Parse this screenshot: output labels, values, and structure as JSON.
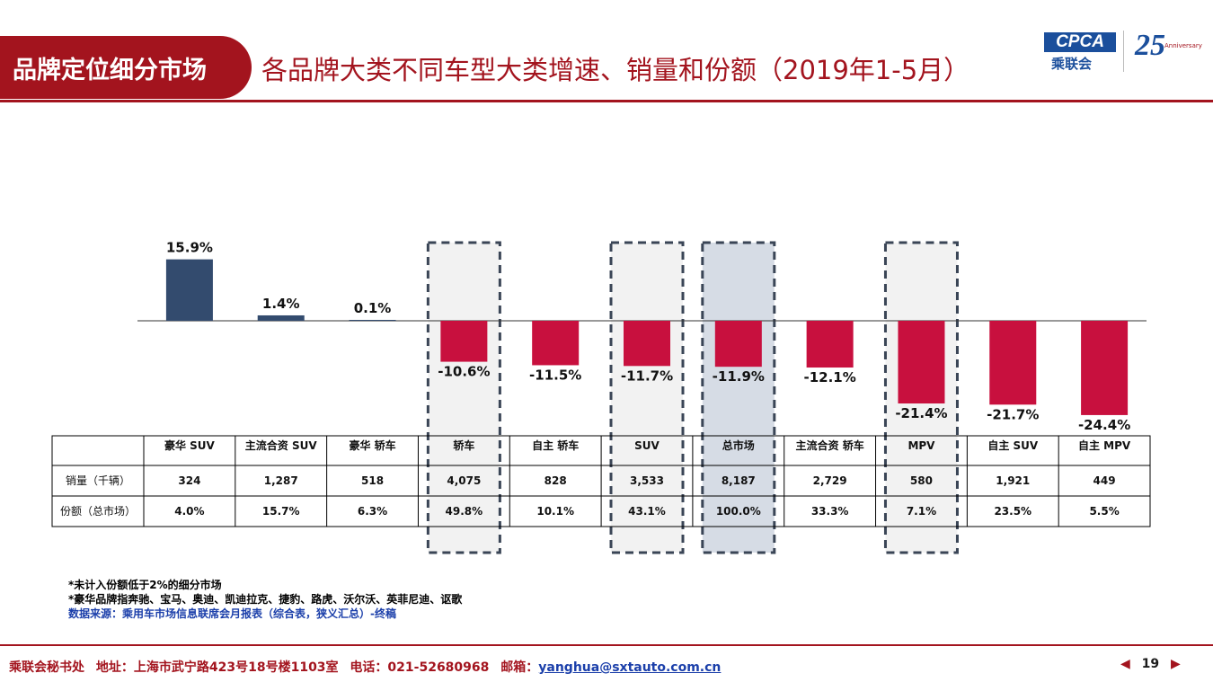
{
  "header": {
    "badge": "品牌定位细分市场",
    "title": "各品牌大类不同车型大类增速、销量和份额（2019年1-5月）"
  },
  "logos": {
    "cpca": "CPCA",
    "cpca_sub": "乘联会",
    "anniversary": "25",
    "anniversary_sub": "Anniversary"
  },
  "colors": {
    "positive": "#334b6e",
    "negative": "#c8103e",
    "highlight_box": "#f2f2f2",
    "highlight_total": "#d6dce5",
    "accent": "#a3141e"
  },
  "chart_data": {
    "type": "bar",
    "categories": [
      "豪华 SUV",
      "主流合资 SUV",
      "豪华 轿车",
      "轿车",
      "自主 轿车",
      "SUV",
      "总市场",
      "主流合资 轿车",
      "MPV",
      "自主 SUV",
      "自主 MPV"
    ],
    "values": [
      15.9,
      1.4,
      0.1,
      -10.6,
      -11.5,
      -11.7,
      -11.9,
      -12.1,
      -21.4,
      -21.7,
      -24.4
    ],
    "value_labels": [
      "15.9%",
      "1.4%",
      "0.1%",
      "-10.6%",
      "-11.5%",
      "-11.7%",
      "-11.9%",
      "-12.1%",
      "-21.4%",
      "-21.7%",
      "-24.4%"
    ],
    "highlighted": [
      3,
      5,
      6,
      8
    ],
    "total_index": 6,
    "table": {
      "row_labels": [
        "销量（千辆）",
        "份额（总市场）"
      ],
      "sales": [
        "324",
        "1,287",
        "518",
        "4,075",
        "828",
        "3,533",
        "8,187",
        "2,729",
        "580",
        "1,921",
        "449"
      ],
      "share": [
        "4.0%",
        "15.7%",
        "6.3%",
        "49.8%",
        "10.1%",
        "43.1%",
        "100.0%",
        "33.3%",
        "7.1%",
        "23.5%",
        "5.5%"
      ]
    }
  },
  "notes": {
    "line1": "*未计入份额低于2%的细分市场",
    "line2": "*豪华品牌指奔驰、宝马、奥迪、凯迪拉克、捷豹、路虎、沃尔沃、英菲尼迪、讴歌",
    "source": "数据来源：乘用车市场信息联席会月报表（综合表，狭义汇总）-终稿"
  },
  "footer": {
    "org": "乘联会秘书处",
    "address": "地址：上海市武宁路423号18号楼1103室",
    "phone": "电话：021-52680968",
    "email_label": "邮箱：",
    "email": "yanghua@sxtauto.com.cn",
    "page": "19",
    "prev": "◀",
    "next": "▶"
  }
}
